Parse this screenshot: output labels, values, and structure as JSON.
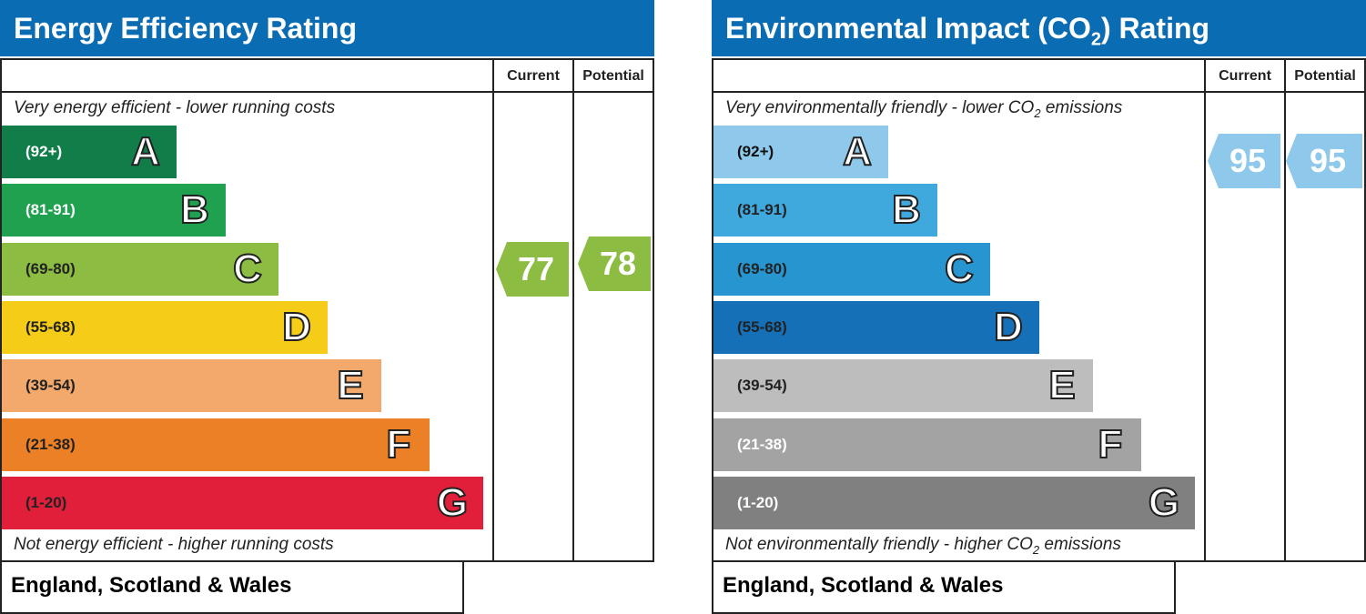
{
  "chart_data": [
    {
      "type": "bar",
      "title": "Energy Efficiency Rating",
      "columns": [
        "Current",
        "Potential"
      ],
      "top_note": "Very energy efficient - lower running costs",
      "bottom_note": "Not energy efficient - higher running costs",
      "footer": "England, Scotland & Wales",
      "bands": [
        {
          "range": "(92+)",
          "letter": "A",
          "color": "#117e4a",
          "text_color": "#ffffff",
          "fill": 0.36
        },
        {
          "range": "(81-91)",
          "letter": "B",
          "color": "#1fa14f",
          "text_color": "#ffffff",
          "fill": 0.46
        },
        {
          "range": "(69-80)",
          "letter": "C",
          "color": "#8cbd42",
          "text_color": "#222222",
          "fill": 0.57
        },
        {
          "range": "(55-68)",
          "letter": "D",
          "color": "#f5cc17",
          "text_color": "#222222",
          "fill": 0.67
        },
        {
          "range": "(39-54)",
          "letter": "E",
          "color": "#f2a96b",
          "text_color": "#222222",
          "fill": 0.78
        },
        {
          "range": "(21-38)",
          "letter": "F",
          "color": "#ec8026",
          "text_color": "#222222",
          "fill": 0.88
        },
        {
          "range": "(1-20)",
          "letter": "G",
          "color": "#e21f3a",
          "text_color": "#222222",
          "fill": 0.99
        }
      ],
      "ratings": {
        "current": {
          "value": 77,
          "band": "C",
          "color": "#8cbd42"
        },
        "potential": {
          "value": 78,
          "band": "C",
          "color": "#8cbd42"
        }
      }
    },
    {
      "type": "bar",
      "title_main": "Environmental Impact (CO",
      "title_sub": "2",
      "title_end": ") Rating",
      "columns": [
        "Current",
        "Potential"
      ],
      "top_note_main": "Very environmentally friendly - lower CO",
      "top_note_sub": "2",
      "top_note_end": " emissions",
      "bottom_note_main": "Not environmentally friendly - higher CO",
      "bottom_note_sub": "2",
      "bottom_note_end": " emissions",
      "footer": "England, Scotland & Wales",
      "bands": [
        {
          "range": "(92+)",
          "letter": "A",
          "color": "#8ec8ea",
          "text_color": "#111111",
          "fill": 0.36
        },
        {
          "range": "(81-91)",
          "letter": "B",
          "color": "#3fa8dd",
          "text_color": "#222222",
          "fill": 0.46
        },
        {
          "range": "(69-80)",
          "letter": "C",
          "color": "#2795d0",
          "text_color": "#222222",
          "fill": 0.57
        },
        {
          "range": "(55-68)",
          "letter": "D",
          "color": "#1570b7",
          "text_color": "#222222",
          "fill": 0.67
        },
        {
          "range": "(39-54)",
          "letter": "E",
          "color": "#bdbdbd",
          "text_color": "#222222",
          "fill": 0.78
        },
        {
          "range": "(21-38)",
          "letter": "F",
          "color": "#a3a3a3",
          "text_color": "#ffffff",
          "fill": 0.88
        },
        {
          "range": "(1-20)",
          "letter": "G",
          "color": "#808080",
          "text_color": "#ffffff",
          "fill": 0.99
        }
      ],
      "ratings": {
        "current": {
          "value": 95,
          "band": "A",
          "color": "#8ec8ea"
        },
        "potential": {
          "value": 95,
          "band": "A",
          "color": "#8ec8ea"
        }
      }
    }
  ]
}
